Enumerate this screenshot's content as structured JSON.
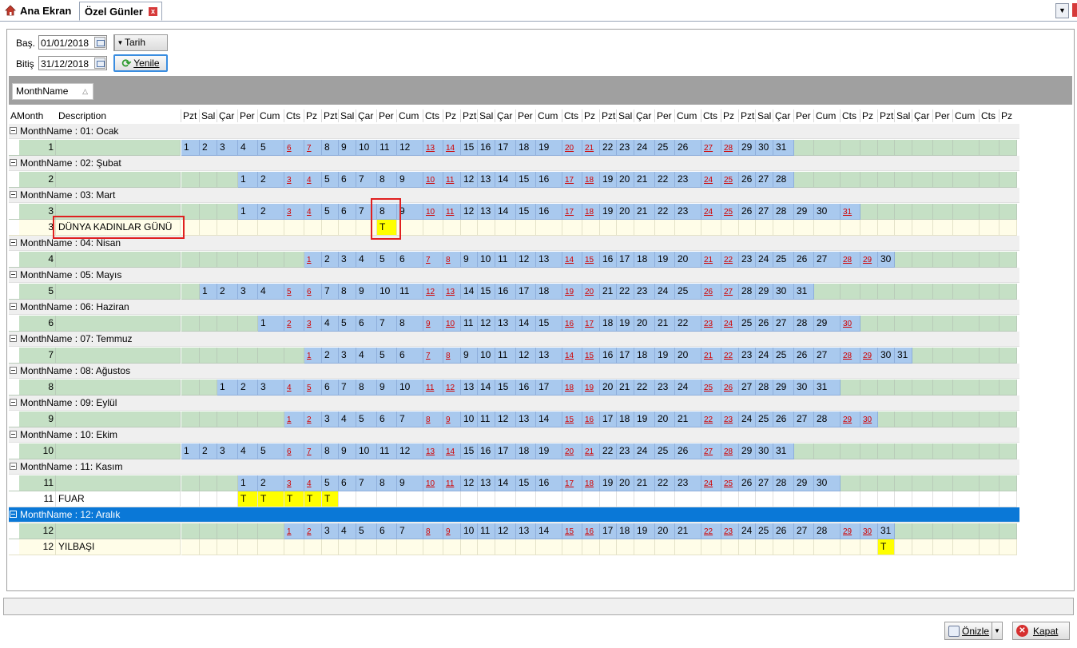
{
  "tabs": [
    {
      "label": "Ana Ekran"
    },
    {
      "label": "Özel Günler"
    }
  ],
  "filters": {
    "start_label": "Baş.",
    "start_value": "01/01/2018",
    "end_label": "Bitiş",
    "end_value": "31/12/2018",
    "mode_value": "Tarih",
    "refresh_label": "Yenile"
  },
  "group_by": "MonthName",
  "headers": {
    "amonth": "AMonth",
    "description": "Description",
    "days": [
      "Pzt",
      "Sal",
      "Çar",
      "Per",
      "Cum",
      "Cts",
      "Pz",
      "Pzt",
      "Sal",
      "Çar",
      "Per",
      "Cum",
      "Cts",
      "Pz",
      "Pzt",
      "Sal",
      "Çar",
      "Per",
      "Cum",
      "Cts",
      "Pz",
      "Pzt",
      "Sal",
      "Çar",
      "Per",
      "Cum",
      "Cts",
      "Pz",
      "Pzt",
      "Sal",
      "Çar",
      "Per",
      "Cum",
      "Cts",
      "Pz",
      "Pzt",
      "Sal",
      "Çar",
      "Per",
      "Cum",
      "Cts",
      "Pz"
    ]
  },
  "months": [
    {
      "group": "MonthName : 01: Ocak",
      "amonth": "1",
      "start": 0,
      "days": 31,
      "events": []
    },
    {
      "group": "MonthName : 02: Şubat",
      "amonth": "2",
      "start": 3,
      "days": 28,
      "events": []
    },
    {
      "group": "MonthName : 03: Mart",
      "amonth": "3",
      "start": 3,
      "days": 31,
      "events": [
        {
          "amonth": "3",
          "description": "DÜNYA KADINLAR GÜNÜ",
          "days": [
            8
          ],
          "mark": "T"
        }
      ]
    },
    {
      "group": "MonthName : 04: Nisan",
      "amonth": "4",
      "start": 6,
      "days": 30,
      "events": []
    },
    {
      "group": "MonthName : 05: Mayıs",
      "amonth": "5",
      "start": 1,
      "days": 31,
      "events": []
    },
    {
      "group": "MonthName : 06: Haziran",
      "amonth": "6",
      "start": 4,
      "days": 30,
      "events": []
    },
    {
      "group": "MonthName : 07: Temmuz",
      "amonth": "7",
      "start": 6,
      "days": 31,
      "events": []
    },
    {
      "group": "MonthName : 08: Ağustos",
      "amonth": "8",
      "start": 2,
      "days": 31,
      "events": []
    },
    {
      "group": "MonthName : 09: Eylül",
      "amonth": "9",
      "start": 5,
      "days": 30,
      "events": []
    },
    {
      "group": "MonthName : 10: Ekim",
      "amonth": "10",
      "start": 0,
      "days": 31,
      "events": []
    },
    {
      "group": "MonthName : 11: Kasım",
      "amonth": "11",
      "start": 3,
      "days": 30,
      "events": [
        {
          "amonth": "11",
          "description": "FUAR",
          "days": [
            1,
            2,
            3,
            4,
            5
          ],
          "mark": "T"
        }
      ]
    },
    {
      "group": "MonthName : 12: Aralık",
      "amonth": "12",
      "start": 5,
      "days": 31,
      "selected": true,
      "events": [
        {
          "amonth": "12",
          "description": "YILBAŞI",
          "days": [
            31
          ],
          "mark": "T"
        }
      ]
    }
  ],
  "buttons": {
    "preview": "Önizle",
    "close": "Kapat"
  },
  "colors": {
    "month_row_bg": "#c5e0c5",
    "day_cell_bg": "#a9c9ee",
    "event_row_bg": "#fffde8",
    "event_mark_bg": "#ffff00",
    "selected_group_bg": "#0a78d7",
    "weekend_text": "#d10000",
    "highlight_box": "#e02020"
  }
}
